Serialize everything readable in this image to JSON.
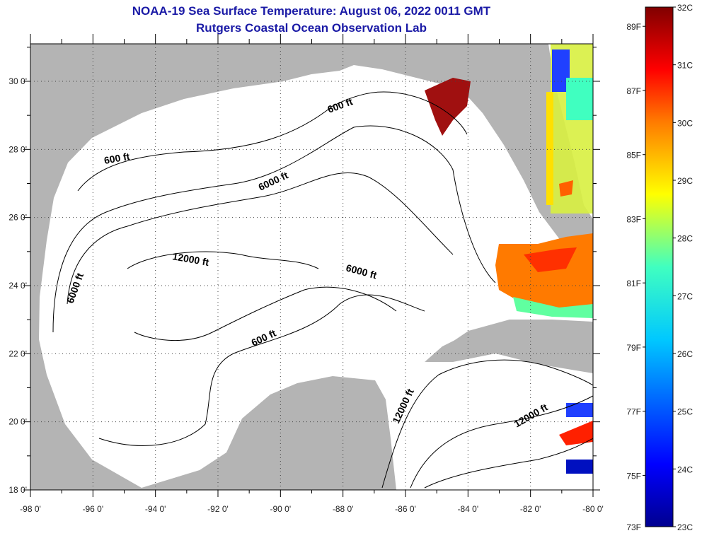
{
  "header": {
    "title": "NOAA-19 Sea Surface Temperature:  August 06, 2022 0011 GMT",
    "subtitle": "Rutgers Coastal Ocean Observation Lab"
  },
  "map": {
    "lon_range": [
      -98,
      -80
    ],
    "lat_range": [
      18,
      31.1
    ],
    "lon_labels": [
      "-98 0'",
      "-96 0'",
      "-94 0'",
      "-92 0'",
      "-90 0'",
      "-88 0'",
      "-86 0'",
      "-84 0'",
      "-82 0'",
      "-80 0'"
    ],
    "lat_labels": [
      "18 0'",
      "20 0'",
      "22 0'",
      "24 0'",
      "26 0'",
      "28 0'",
      "30 0'"
    ],
    "contour_labels": [
      "600 ft",
      "600 ft",
      "600 ft",
      "6000 ft",
      "6000 ft",
      "6000 ft",
      "12000 ft",
      "12000 ft",
      "12000 ft"
    ],
    "land_color": "#b4b4b4",
    "water_color": "#ffffff"
  },
  "colorbar": {
    "f_labels": [
      "89F",
      "87F",
      "85F",
      "83F",
      "81F",
      "79F",
      "77F",
      "75F",
      "73F"
    ],
    "c_labels": [
      "32C",
      "31C",
      "30C",
      "29C",
      "28C",
      "27C",
      "26C",
      "25C",
      "24C",
      "23C"
    ],
    "range_c": [
      23,
      32
    ]
  }
}
